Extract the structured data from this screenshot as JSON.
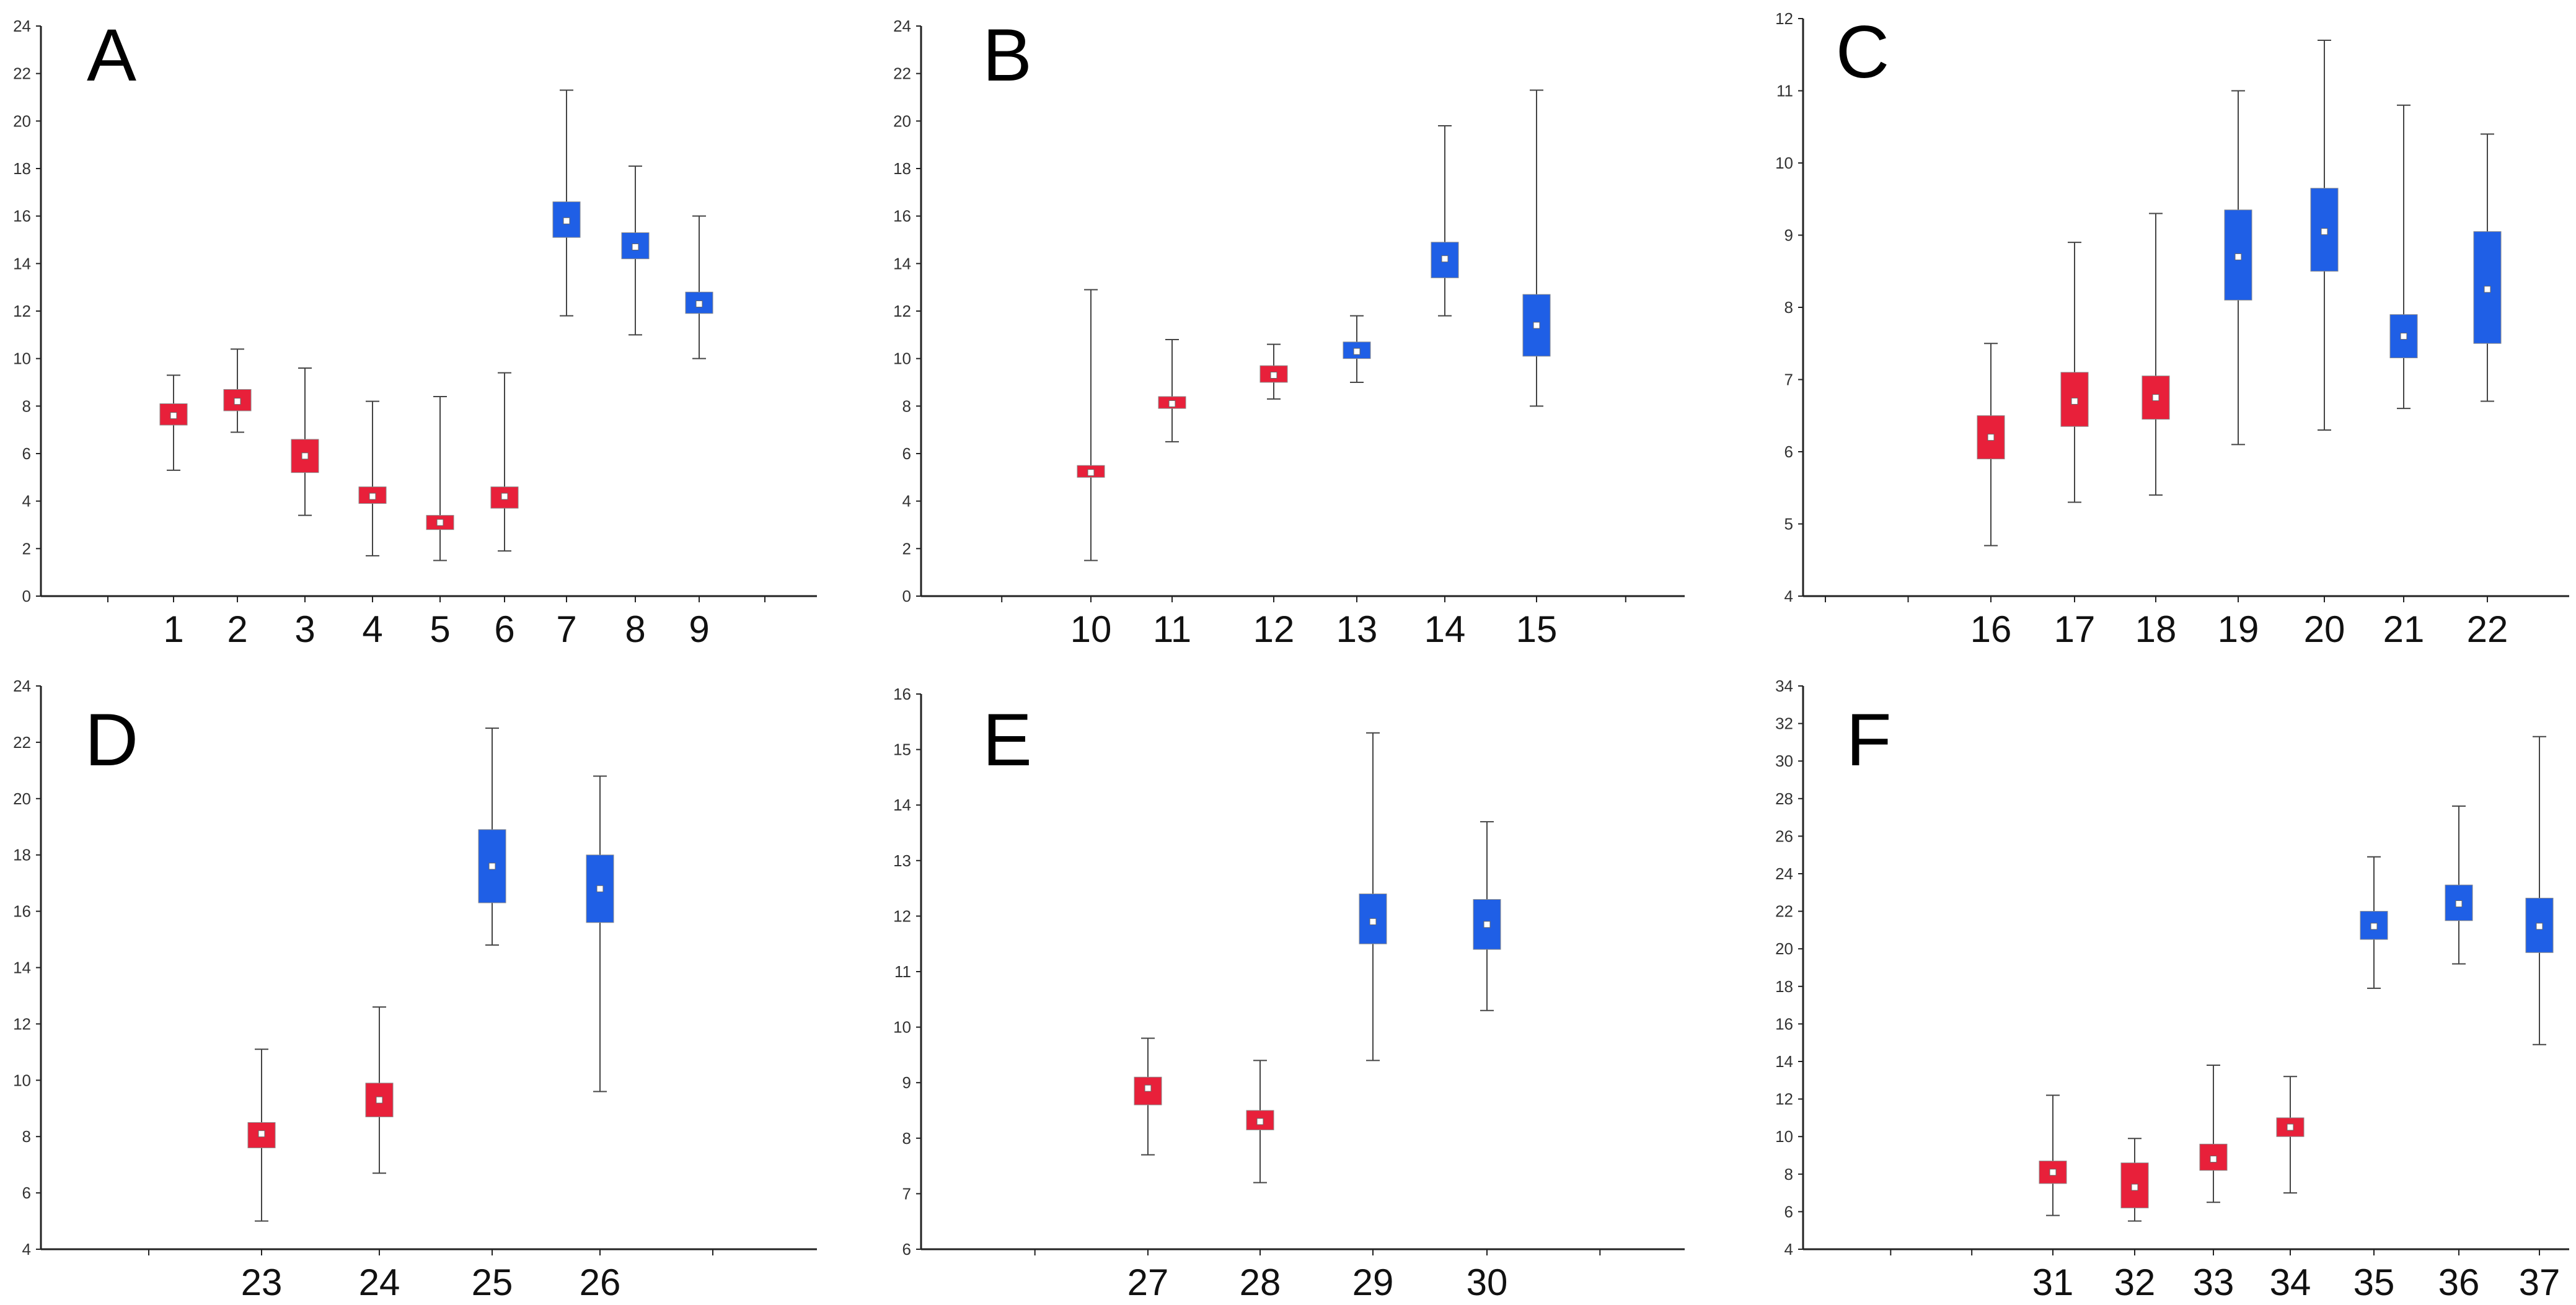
{
  "figure": {
    "background": "#ffffff"
  },
  "colors": {
    "group_a": "#e8203a",
    "group_b": "#1f5fe6",
    "mean_marker": "#ffffff",
    "whisker": "#444444",
    "axis": "#222222"
  },
  "chart_data": [
    {
      "panel": "A",
      "type": "box",
      "ylim": [
        0,
        24
      ],
      "yticks": [
        0,
        2,
        4,
        6,
        8,
        10,
        12,
        14,
        16,
        18,
        20,
        22,
        24
      ],
      "categories": [
        "1",
        "2",
        "3",
        "4",
        "5",
        "6",
        "7",
        "8",
        "9"
      ],
      "boxes": [
        {
          "label": "1",
          "group": "red",
          "whisker_low": 5.3,
          "box_low": 7.2,
          "mean": 7.6,
          "box_high": 8.1,
          "whisker_high": 9.3
        },
        {
          "label": "2",
          "group": "red",
          "whisker_low": 6.9,
          "box_low": 7.8,
          "mean": 8.2,
          "box_high": 8.7,
          "whisker_high": 10.4
        },
        {
          "label": "3",
          "group": "red",
          "whisker_low": 3.4,
          "box_low": 5.2,
          "mean": 5.9,
          "box_high": 6.6,
          "whisker_high": 9.6
        },
        {
          "label": "4",
          "group": "red",
          "whisker_low": 1.7,
          "box_low": 3.9,
          "mean": 4.2,
          "box_high": 4.6,
          "whisker_high": 8.2
        },
        {
          "label": "5",
          "group": "red",
          "whisker_low": 1.5,
          "box_low": 2.8,
          "mean": 3.1,
          "box_high": 3.4,
          "whisker_high": 8.4
        },
        {
          "label": "6",
          "group": "red",
          "whisker_low": 1.9,
          "box_low": 3.7,
          "mean": 4.2,
          "box_high": 4.6,
          "whisker_high": 9.4
        },
        {
          "label": "7",
          "group": "blue",
          "whisker_low": 11.8,
          "box_low": 15.1,
          "mean": 15.8,
          "box_high": 16.6,
          "whisker_high": 21.3
        },
        {
          "label": "8",
          "group": "blue",
          "whisker_low": 11.0,
          "box_low": 14.2,
          "mean": 14.7,
          "box_high": 15.3,
          "whisker_high": 18.1
        },
        {
          "label": "9",
          "group": "blue",
          "whisker_low": 10.0,
          "box_low": 11.9,
          "mean": 12.3,
          "box_high": 12.8,
          "whisker_high": 16.0
        }
      ]
    },
    {
      "panel": "B",
      "type": "box",
      "ylim": [
        0,
        24
      ],
      "yticks": [
        0,
        2,
        4,
        6,
        8,
        10,
        12,
        14,
        16,
        18,
        20,
        22,
        24
      ],
      "categories": [
        "10",
        "11",
        "12",
        "13",
        "14",
        "15"
      ],
      "boxes": [
        {
          "label": "10",
          "group": "red",
          "whisker_low": 1.5,
          "box_low": 5.0,
          "mean": 5.2,
          "box_high": 5.5,
          "whisker_high": 12.9
        },
        {
          "label": "11",
          "group": "red",
          "whisker_low": 6.5,
          "box_low": 7.9,
          "mean": 8.1,
          "box_high": 8.4,
          "whisker_high": 10.8
        },
        {
          "label": "12",
          "group": "red",
          "whisker_low": 8.3,
          "box_low": 9.0,
          "mean": 9.3,
          "box_high": 9.7,
          "whisker_high": 10.6
        },
        {
          "label": "13",
          "group": "blue",
          "whisker_low": 9.0,
          "box_low": 10.0,
          "mean": 10.3,
          "box_high": 10.7,
          "whisker_high": 11.8
        },
        {
          "label": "14",
          "group": "blue",
          "whisker_low": 11.8,
          "box_low": 13.4,
          "mean": 14.2,
          "box_high": 14.9,
          "whisker_high": 19.8
        },
        {
          "label": "15",
          "group": "blue",
          "whisker_low": 8.0,
          "box_low": 10.1,
          "mean": 11.4,
          "box_high": 12.7,
          "whisker_high": 21.3
        }
      ]
    },
    {
      "panel": "C",
      "type": "box",
      "ylim": [
        4,
        12
      ],
      "yticks": [
        4,
        5,
        6,
        7,
        8,
        9,
        10,
        11,
        12
      ],
      "categories": [
        "16",
        "17",
        "18",
        "19",
        "20",
        "21",
        "22"
      ],
      "boxes": [
        {
          "label": "16",
          "group": "red",
          "whisker_low": 4.7,
          "box_low": 5.9,
          "mean": 6.2,
          "box_high": 6.5,
          "whisker_high": 7.5
        },
        {
          "label": "17",
          "group": "red",
          "whisker_low": 5.3,
          "box_low": 6.35,
          "mean": 6.7,
          "box_high": 7.1,
          "whisker_high": 8.9
        },
        {
          "label": "18",
          "group": "red",
          "whisker_low": 5.4,
          "box_low": 6.45,
          "mean": 6.75,
          "box_high": 7.05,
          "whisker_high": 9.3
        },
        {
          "label": "19",
          "group": "blue",
          "whisker_low": 6.1,
          "box_low": 8.1,
          "mean": 8.7,
          "box_high": 9.35,
          "whisker_high": 11.0
        },
        {
          "label": "20",
          "group": "blue",
          "whisker_low": 6.3,
          "box_low": 8.5,
          "mean": 9.05,
          "box_high": 9.65,
          "whisker_high": 11.7
        },
        {
          "label": "21",
          "group": "blue",
          "whisker_low": 6.6,
          "box_low": 7.3,
          "mean": 7.6,
          "box_high": 7.9,
          "whisker_high": 10.8
        },
        {
          "label": "22",
          "group": "blue",
          "whisker_low": 6.7,
          "box_low": 7.5,
          "mean": 8.25,
          "box_high": 9.05,
          "whisker_high": 10.4
        }
      ]
    },
    {
      "panel": "D",
      "type": "box",
      "ylim": [
        4,
        24
      ],
      "yticks": [
        4,
        6,
        8,
        10,
        12,
        14,
        16,
        18,
        20,
        22,
        24
      ],
      "categories": [
        "23",
        "24",
        "25",
        "26"
      ],
      "boxes": [
        {
          "label": "23",
          "group": "red",
          "whisker_low": 5.0,
          "box_low": 7.6,
          "mean": 8.1,
          "box_high": 8.5,
          "whisker_high": 11.1
        },
        {
          "label": "24",
          "group": "red",
          "whisker_low": 6.7,
          "box_low": 8.7,
          "mean": 9.3,
          "box_high": 9.9,
          "whisker_high": 12.6
        },
        {
          "label": "25",
          "group": "blue",
          "whisker_low": 14.8,
          "box_low": 16.3,
          "mean": 17.6,
          "box_high": 18.9,
          "whisker_high": 22.5
        },
        {
          "label": "26",
          "group": "blue",
          "whisker_low": 9.6,
          "box_low": 15.6,
          "mean": 16.8,
          "box_high": 18.0,
          "whisker_high": 20.8
        }
      ]
    },
    {
      "panel": "E",
      "type": "box",
      "ylim": [
        6,
        16
      ],
      "yticks": [
        6,
        7,
        8,
        9,
        10,
        11,
        12,
        13,
        14,
        15,
        16
      ],
      "categories": [
        "27",
        "28",
        "29",
        "30"
      ],
      "boxes": [
        {
          "label": "27",
          "group": "red",
          "whisker_low": 7.7,
          "box_low": 8.6,
          "mean": 8.9,
          "box_high": 9.1,
          "whisker_high": 9.8
        },
        {
          "label": "28",
          "group": "red",
          "whisker_low": 7.2,
          "box_low": 8.15,
          "mean": 8.3,
          "box_high": 8.5,
          "whisker_high": 9.4
        },
        {
          "label": "29",
          "group": "blue",
          "whisker_low": 9.4,
          "box_low": 11.5,
          "mean": 11.9,
          "box_high": 12.4,
          "whisker_high": 15.3
        },
        {
          "label": "30",
          "group": "blue",
          "whisker_low": 10.3,
          "box_low": 11.4,
          "mean": 11.85,
          "box_high": 12.3,
          "whisker_high": 13.7
        }
      ]
    },
    {
      "panel": "F",
      "type": "box",
      "ylim": [
        4,
        34
      ],
      "yticks": [
        4,
        6,
        8,
        10,
        12,
        14,
        16,
        18,
        20,
        22,
        24,
        26,
        28,
        30,
        32,
        34
      ],
      "categories": [
        "31",
        "32",
        "33",
        "34",
        "35",
        "36",
        "37"
      ],
      "boxes": [
        {
          "label": "31",
          "group": "red",
          "whisker_low": 5.8,
          "box_low": 7.5,
          "mean": 8.1,
          "box_high": 8.7,
          "whisker_high": 12.2
        },
        {
          "label": "32",
          "group": "red",
          "whisker_low": 5.5,
          "box_low": 6.2,
          "mean": 7.3,
          "box_high": 8.6,
          "whisker_high": 9.9
        },
        {
          "label": "33",
          "group": "red",
          "whisker_low": 6.5,
          "box_low": 8.2,
          "mean": 8.8,
          "box_high": 9.6,
          "whisker_high": 13.8
        },
        {
          "label": "34",
          "group": "red",
          "whisker_low": 7.0,
          "box_low": 10.0,
          "mean": 10.5,
          "box_high": 11.0,
          "whisker_high": 13.2
        },
        {
          "label": "35",
          "group": "blue",
          "whisker_low": 17.9,
          "box_low": 20.5,
          "mean": 21.2,
          "box_high": 22.0,
          "whisker_high": 24.9
        },
        {
          "label": "36",
          "group": "blue",
          "whisker_low": 19.2,
          "box_low": 21.5,
          "mean": 22.4,
          "box_high": 23.4,
          "whisker_high": 27.6
        },
        {
          "label": "37",
          "group": "blue",
          "whisker_low": 14.9,
          "box_low": 19.8,
          "mean": 21.2,
          "box_high": 22.7,
          "whisker_high": 31.3
        }
      ]
    }
  ]
}
